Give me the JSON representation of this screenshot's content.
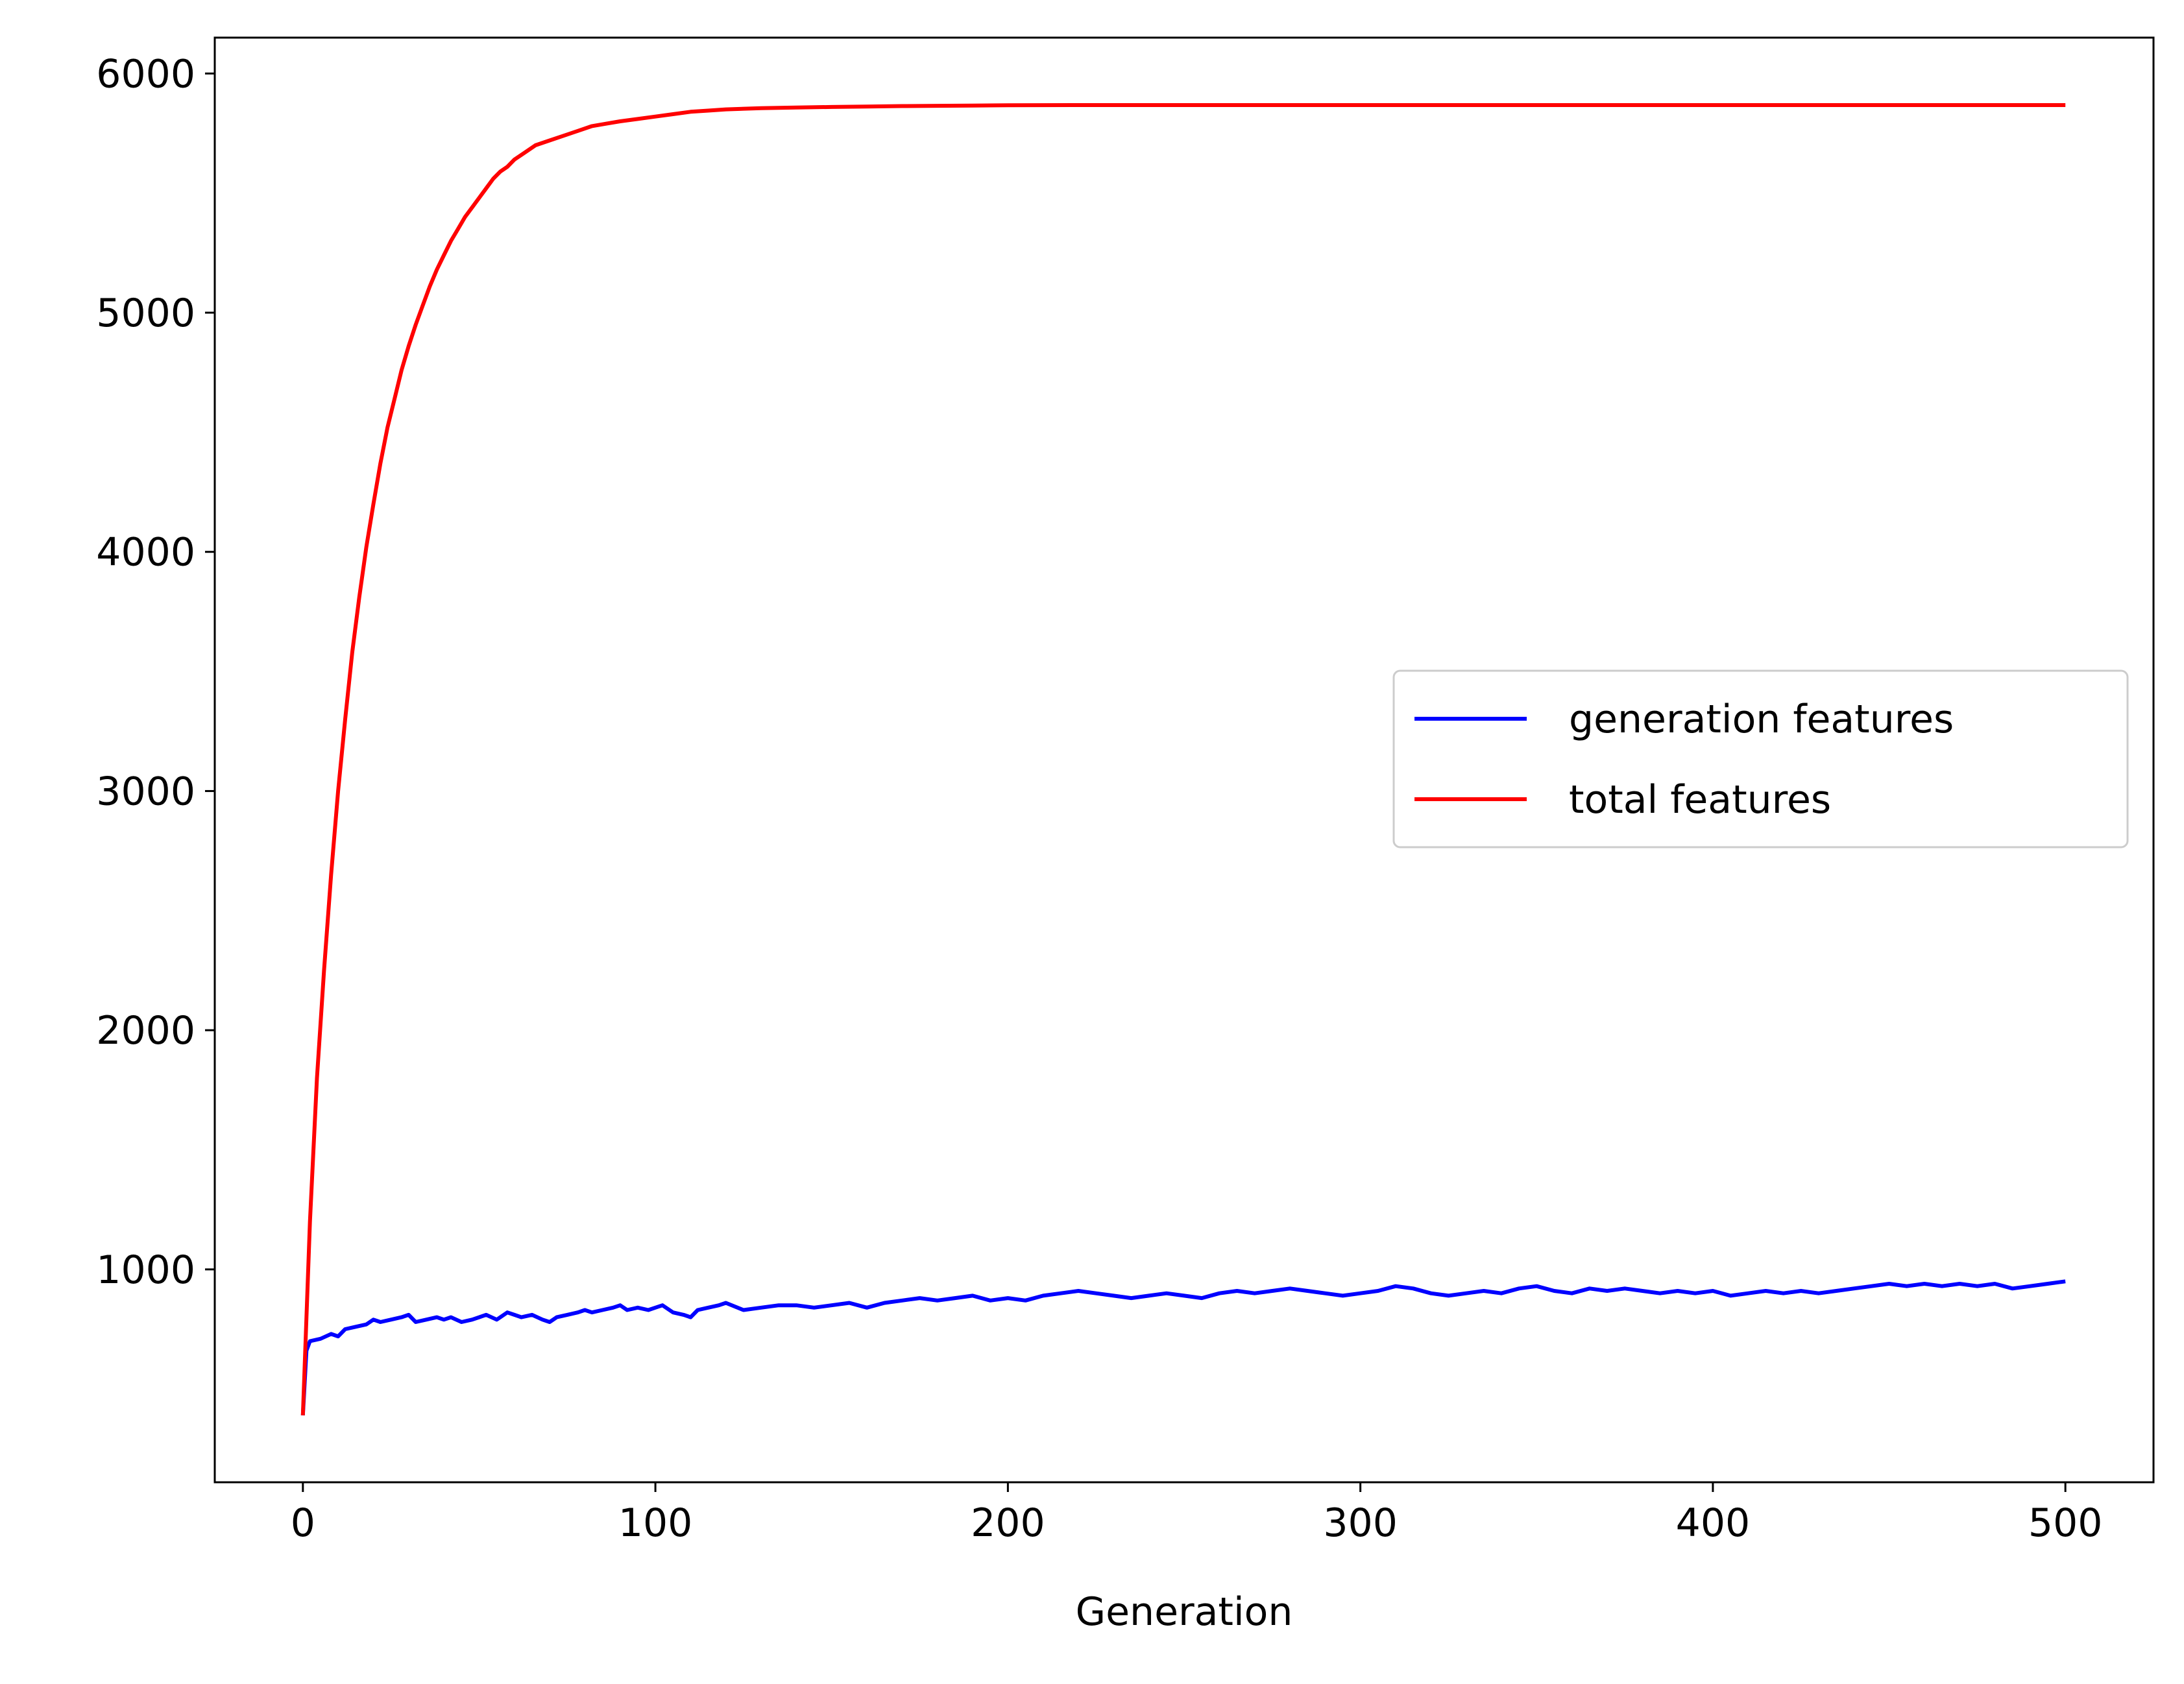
{
  "chart_data": {
    "type": "line",
    "title": "",
    "xlabel": "Generation",
    "ylabel": "",
    "xlim": [
      -25,
      525
    ],
    "ylim": [
      110,
      6150
    ],
    "xticks": [
      0,
      100,
      200,
      300,
      400,
      500
    ],
    "yticks": [
      1000,
      2000,
      3000,
      4000,
      5000,
      6000
    ],
    "xtick_labels": [
      "0",
      "100",
      "200",
      "300",
      "400",
      "500"
    ],
    "ytick_labels": [
      "1000",
      "2000",
      "3000",
      "4000",
      "5000",
      "6000"
    ],
    "grid": false,
    "legend_position": "center-right",
    "series": [
      {
        "name": "generation features",
        "color": "#0000ff",
        "x": [
          0,
          1,
          2,
          5,
          8,
          10,
          12,
          15,
          18,
          20,
          22,
          25,
          28,
          30,
          32,
          35,
          38,
          40,
          42,
          45,
          48,
          50,
          52,
          55,
          58,
          60,
          62,
          65,
          68,
          70,
          72,
          75,
          78,
          80,
          82,
          85,
          88,
          90,
          92,
          95,
          98,
          100,
          102,
          105,
          108,
          110,
          112,
          115,
          118,
          120,
          125,
          130,
          135,
          140,
          145,
          150,
          155,
          160,
          165,
          170,
          175,
          180,
          185,
          190,
          195,
          200,
          205,
          210,
          215,
          220,
          225,
          230,
          235,
          240,
          245,
          250,
          255,
          260,
          265,
          270,
          275,
          280,
          285,
          290,
          295,
          300,
          305,
          310,
          315,
          320,
          325,
          330,
          335,
          340,
          345,
          350,
          355,
          360,
          365,
          370,
          375,
          380,
          385,
          390,
          395,
          400,
          405,
          410,
          415,
          420,
          425,
          430,
          435,
          440,
          445,
          450,
          455,
          460,
          465,
          470,
          475,
          480,
          485,
          490,
          495,
          500
        ],
        "values": [
          390,
          660,
          700,
          710,
          730,
          720,
          750,
          760,
          770,
          790,
          780,
          790,
          800,
          810,
          780,
          790,
          800,
          790,
          800,
          780,
          790,
          800,
          810,
          790,
          820,
          810,
          800,
          810,
          790,
          780,
          800,
          810,
          820,
          830,
          820,
          830,
          840,
          850,
          830,
          840,
          830,
          840,
          850,
          820,
          810,
          800,
          830,
          840,
          850,
          860,
          830,
          840,
          850,
          850,
          840,
          850,
          860,
          840,
          860,
          870,
          880,
          870,
          880,
          890,
          870,
          880,
          870,
          890,
          900,
          910,
          900,
          890,
          880,
          890,
          900,
          890,
          880,
          900,
          910,
          900,
          910,
          920,
          910,
          900,
          890,
          900,
          910,
          930,
          920,
          900,
          890,
          900,
          910,
          900,
          920,
          930,
          910,
          900,
          920,
          910,
          920,
          910,
          900,
          910,
          900,
          910,
          890,
          900,
          910,
          900,
          910,
          900,
          910,
          920,
          930,
          940,
          930,
          940,
          930,
          940,
          930,
          940,
          920,
          930,
          940,
          950
        ]
      },
      {
        "name": "total features",
        "color": "#ff0000",
        "x": [
          0,
          2,
          4,
          6,
          8,
          10,
          12,
          14,
          16,
          18,
          20,
          22,
          24,
          26,
          28,
          30,
          32,
          34,
          36,
          38,
          40,
          42,
          44,
          46,
          48,
          50,
          52,
          54,
          56,
          58,
          60,
          63,
          66,
          70,
          74,
          78,
          82,
          86,
          90,
          95,
          100,
          105,
          110,
          115,
          120,
          130,
          140,
          150,
          160,
          170,
          180,
          190,
          200,
          220,
          240,
          260,
          280,
          300,
          350,
          400,
          450,
          500
        ],
        "values": [
          390,
          1200,
          1800,
          2250,
          2650,
          3000,
          3300,
          3580,
          3810,
          4020,
          4200,
          4370,
          4520,
          4640,
          4760,
          4860,
          4950,
          5030,
          5110,
          5180,
          5240,
          5300,
          5350,
          5400,
          5440,
          5480,
          5520,
          5560,
          5590,
          5610,
          5640,
          5670,
          5700,
          5720,
          5740,
          5760,
          5780,
          5790,
          5800,
          5810,
          5820,
          5830,
          5840,
          5845,
          5850,
          5855,
          5858,
          5860,
          5862,
          5864,
          5865,
          5866,
          5867,
          5868,
          5868,
          5868,
          5868,
          5868,
          5868,
          5868,
          5868,
          5868
        ]
      }
    ]
  }
}
